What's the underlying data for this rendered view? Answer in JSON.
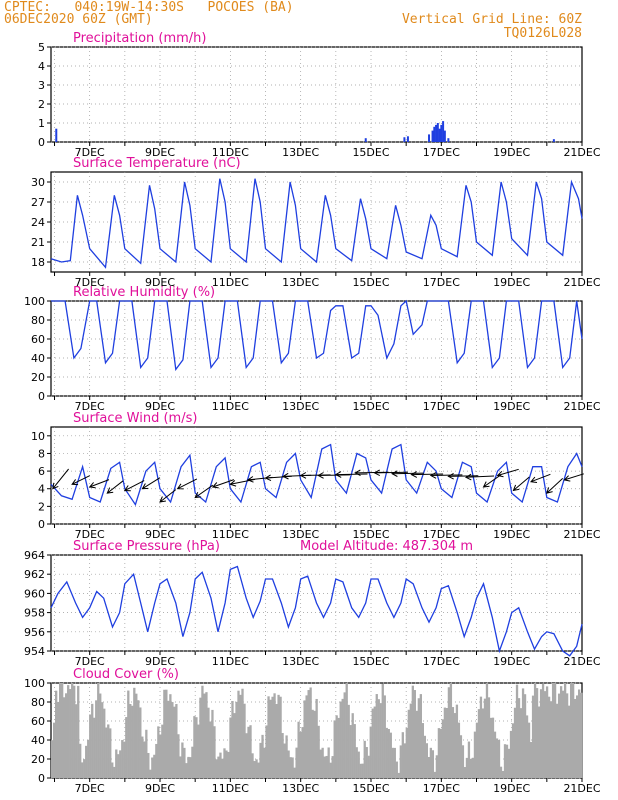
{
  "header": {
    "line1_left": "CPTEC:   040:19W-14:30S   POCOES (BA)",
    "line2_left": "06DEC2020 60Z (GMT)",
    "line1_right": "Vertical Grid Line: 60Z",
    "line2_right": "TQ0126L028"
  },
  "x_ticks": [
    "7DEC",
    "9DEC",
    "11DEC",
    "13DEC",
    "15DEC",
    "17DEC",
    "19DEC",
    "21DEC"
  ],
  "colors": {
    "header": "#e08a1c",
    "title": "#e0109a",
    "series": "#1f3fe0",
    "bars": "#aaaaaa",
    "wind": "#000000"
  },
  "chart_data": [
    {
      "type": "bar",
      "title": "Precipitation (mm/h)",
      "ylim": [
        0,
        5
      ],
      "yticks": [
        0,
        1,
        2,
        3,
        4,
        5
      ],
      "x_day": [
        6.05,
        14.85,
        15.95,
        16.05,
        16.65,
        16.75,
        16.8,
        16.85,
        16.9,
        16.95,
        17.0,
        17.05,
        17.1,
        17.2,
        20.2
      ],
      "values": [
        0.7,
        0.2,
        0.25,
        0.3,
        0.4,
        0.6,
        0.8,
        0.9,
        1.0,
        0.7,
        0.9,
        1.1,
        0.6,
        0.2,
        0.15
      ]
    },
    {
      "type": "line",
      "title": "Surface Temperature (nC)",
      "ylim": [
        16.5,
        31.5
      ],
      "yticks": [
        18,
        21,
        24,
        27,
        30
      ],
      "x_day": [
        5.9,
        6.2,
        6.45,
        6.65,
        6.8,
        7.0,
        7.45,
        7.7,
        7.85,
        8.0,
        8.45,
        8.7,
        8.85,
        9.0,
        9.45,
        9.7,
        9.85,
        10.0,
        10.45,
        10.7,
        10.85,
        11.0,
        11.45,
        11.7,
        11.85,
        12.0,
        12.45,
        12.7,
        12.85,
        13.0,
        13.45,
        13.7,
        13.85,
        14.0,
        14.45,
        14.7,
        14.85,
        15.0,
        15.45,
        15.7,
        15.85,
        16.0,
        16.45,
        16.7,
        16.85,
        17.0,
        17.45,
        17.7,
        17.85,
        18.0,
        18.45,
        18.7,
        18.85,
        19.0,
        19.45,
        19.7,
        19.85,
        20.0,
        20.45,
        20.7,
        20.9,
        21.0
      ],
      "values": [
        18.5,
        18.0,
        18.2,
        28.0,
        25.0,
        20.0,
        17.2,
        28.0,
        25.0,
        20.0,
        17.8,
        29.5,
        26.0,
        20.0,
        18.0,
        30.0,
        26.5,
        20.0,
        18.0,
        30.5,
        27.0,
        20.0,
        18.0,
        30.5,
        27.0,
        20.0,
        18.0,
        30.0,
        26.5,
        20.0,
        18.0,
        28.0,
        25.0,
        20.0,
        18.2,
        27.5,
        24.5,
        20.0,
        18.5,
        26.5,
        23.5,
        19.5,
        18.5,
        25.0,
        23.5,
        20.0,
        18.8,
        29.5,
        27.0,
        21.0,
        19.0,
        30.0,
        27.0,
        21.5,
        19.0,
        30.0,
        27.5,
        21.0,
        19.0,
        30.0,
        27.5,
        24.5
      ]
    },
    {
      "type": "line",
      "title": "Relative Humidity (%)",
      "ylim": [
        0,
        100
      ],
      "yticks": [
        0,
        20,
        40,
        60,
        80,
        100
      ],
      "x_day": [
        5.9,
        6.3,
        6.55,
        6.75,
        7.0,
        7.2,
        7.45,
        7.65,
        7.85,
        8.0,
        8.2,
        8.45,
        8.65,
        8.85,
        9.0,
        9.2,
        9.45,
        9.65,
        9.85,
        10.0,
        10.2,
        10.45,
        10.65,
        10.85,
        11.0,
        11.2,
        11.45,
        11.65,
        11.85,
        12.0,
        12.2,
        12.45,
        12.65,
        12.85,
        13.0,
        13.2,
        13.45,
        13.65,
        13.85,
        14.0,
        14.2,
        14.45,
        14.65,
        14.85,
        15.0,
        15.2,
        15.45,
        15.65,
        15.85,
        16.0,
        16.2,
        16.45,
        16.6,
        16.8,
        17.0,
        17.2,
        17.45,
        17.65,
        17.85,
        18.0,
        18.2,
        18.45,
        18.65,
        18.85,
        19.0,
        19.2,
        19.45,
        19.65,
        19.85,
        20.0,
        20.2,
        20.45,
        20.65,
        20.85,
        21.0
      ],
      "values": [
        100,
        100,
        40,
        50,
        100,
        100,
        35,
        45,
        100,
        100,
        100,
        30,
        40,
        100,
        100,
        100,
        28,
        38,
        100,
        100,
        100,
        30,
        40,
        100,
        100,
        100,
        30,
        40,
        100,
        100,
        100,
        35,
        45,
        100,
        100,
        100,
        40,
        45,
        90,
        95,
        95,
        40,
        45,
        95,
        95,
        85,
        40,
        55,
        95,
        100,
        65,
        75,
        100,
        100,
        100,
        100,
        35,
        45,
        100,
        100,
        100,
        30,
        40,
        100,
        100,
        100,
        30,
        40,
        100,
        100,
        100,
        30,
        40,
        100,
        60
      ]
    },
    {
      "type": "line",
      "title": "Surface Wind (m/s)",
      "ylim": [
        0,
        11
      ],
      "yticks": [
        0,
        2,
        4,
        6,
        8,
        10
      ],
      "x_day": [
        5.9,
        6.2,
        6.5,
        6.8,
        7.0,
        7.3,
        7.6,
        7.85,
        8.0,
        8.3,
        8.6,
        8.85,
        9.0,
        9.3,
        9.6,
        9.85,
        10.0,
        10.3,
        10.6,
        10.85,
        11.0,
        11.3,
        11.6,
        11.85,
        12.0,
        12.3,
        12.6,
        12.85,
        13.0,
        13.3,
        13.6,
        13.85,
        14.0,
        14.3,
        14.6,
        14.85,
        15.0,
        15.3,
        15.6,
        15.85,
        16.0,
        16.3,
        16.6,
        16.85,
        17.0,
        17.3,
        17.6,
        17.85,
        18.0,
        18.3,
        18.6,
        18.85,
        19.0,
        19.3,
        19.6,
        19.85,
        20.0,
        20.3,
        20.6,
        20.85,
        21.0
      ],
      "values": [
        4.5,
        3.2,
        2.8,
        6.5,
        3.0,
        2.5,
        6.3,
        7.0,
        4.0,
        2.2,
        6.0,
        7.0,
        4.0,
        2.5,
        6.5,
        7.8,
        3.5,
        2.5,
        6.5,
        7.5,
        4.0,
        2.5,
        6.5,
        7.0,
        4.0,
        3.0,
        7.0,
        8.0,
        5.0,
        3.0,
        8.5,
        9.0,
        5.0,
        3.5,
        8.0,
        7.5,
        5.0,
        3.5,
        8.5,
        9.0,
        5.0,
        3.5,
        7.0,
        6.0,
        4.0,
        3.0,
        7.0,
        6.5,
        3.5,
        2.5,
        6.0,
        7.0,
        3.5,
        2.5,
        6.5,
        6.5,
        3.0,
        2.5,
        6.5,
        8.0,
        6.5
      ],
      "wind_barbs": [
        {
          "x_day": 5.95,
          "speed": 4,
          "dx": 0.45,
          "dy": 1.6
        },
        {
          "x_day": 6.5,
          "speed": 4.5,
          "dx": 0.5,
          "dy": 0.7
        },
        {
          "x_day": 7.0,
          "speed": 4.2,
          "dx": 0.55,
          "dy": 0.6
        },
        {
          "x_day": 7.5,
          "speed": 3.5,
          "dx": 0.45,
          "dy": 1.0
        },
        {
          "x_day": 8.0,
          "speed": 3.8,
          "dx": 0.55,
          "dy": 0.8
        },
        {
          "x_day": 8.5,
          "speed": 4.0,
          "dx": 0.5,
          "dy": 0.9
        },
        {
          "x_day": 9.0,
          "speed": 2.5,
          "dx": 0.45,
          "dy": 1.0
        },
        {
          "x_day": 9.5,
          "speed": 4.0,
          "dx": 0.55,
          "dy": 0.8
        },
        {
          "x_day": 10.0,
          "speed": 3.0,
          "dx": 0.5,
          "dy": 1.0
        },
        {
          "x_day": 10.5,
          "speed": 4.2,
          "dx": 0.6,
          "dy": 0.6
        },
        {
          "x_day": 11.0,
          "speed": 4.5,
          "dx": 0.7,
          "dy": 0.4
        },
        {
          "x_day": 11.5,
          "speed": 5.0,
          "dx": 0.7,
          "dy": 0.2
        },
        {
          "x_day": 12.0,
          "speed": 5.2,
          "dx": 0.75,
          "dy": 0.15
        },
        {
          "x_day": 12.5,
          "speed": 5.4,
          "dx": 0.8,
          "dy": 0.1
        },
        {
          "x_day": 13.0,
          "speed": 5.5,
          "dx": 0.85,
          "dy": 0.05
        },
        {
          "x_day": 13.5,
          "speed": 5.5,
          "dx": 0.9,
          "dy": 0.05
        },
        {
          "x_day": 14.0,
          "speed": 5.6,
          "dx": 0.9,
          "dy": 0.05
        },
        {
          "x_day": 14.55,
          "speed": 5.8,
          "dx": 0.95,
          "dy": 0.05
        },
        {
          "x_day": 15.1,
          "speed": 5.8,
          "dx": 0.95,
          "dy": 0.05
        },
        {
          "x_day": 15.6,
          "speed": 5.7,
          "dx": 0.9,
          "dy": 0.05
        },
        {
          "x_day": 16.15,
          "speed": 5.6,
          "dx": 0.9,
          "dy": 0.05
        },
        {
          "x_day": 16.7,
          "speed": 5.5,
          "dx": 0.9,
          "dy": 0.05
        },
        {
          "x_day": 17.2,
          "speed": 5.4,
          "dx": 0.85,
          "dy": 0.05
        },
        {
          "x_day": 17.7,
          "speed": 5.3,
          "dx": 0.8,
          "dy": 0.1
        },
        {
          "x_day": 18.2,
          "speed": 4.2,
          "dx": 0.5,
          "dy": 1.0
        },
        {
          "x_day": 18.6,
          "speed": 5.5,
          "dx": 0.6,
          "dy": 0.5
        },
        {
          "x_day": 19.05,
          "speed": 3.8,
          "dx": 0.45,
          "dy": 1.1
        },
        {
          "x_day": 19.55,
          "speed": 4.8,
          "dx": 0.55,
          "dy": 0.6
        },
        {
          "x_day": 20.0,
          "speed": 3.5,
          "dx": 0.45,
          "dy": 1.2
        },
        {
          "x_day": 20.5,
          "speed": 5.0,
          "dx": 0.55,
          "dy": 0.5
        }
      ]
    },
    {
      "type": "line",
      "title": "Surface Pressure (hPa)",
      "annotation": "Model Altitude: 487.304 m",
      "ylim": [
        954,
        964
      ],
      "yticks": [
        954,
        956,
        958,
        960,
        962,
        964
      ],
      "x_day": [
        5.9,
        6.1,
        6.35,
        6.6,
        6.8,
        7.0,
        7.2,
        7.4,
        7.65,
        7.85,
        8.0,
        8.25,
        8.45,
        8.65,
        8.85,
        9.0,
        9.2,
        9.45,
        9.65,
        9.85,
        10.0,
        10.2,
        10.45,
        10.65,
        10.85,
        11.0,
        11.2,
        11.45,
        11.65,
        11.85,
        12.0,
        12.2,
        12.45,
        12.65,
        12.85,
        13.0,
        13.2,
        13.45,
        13.65,
        13.85,
        14.0,
        14.2,
        14.45,
        14.65,
        14.85,
        15.0,
        15.2,
        15.45,
        15.65,
        15.85,
        16.0,
        16.2,
        16.45,
        16.65,
        16.85,
        17.0,
        17.2,
        17.45,
        17.65,
        17.85,
        18.0,
        18.2,
        18.45,
        18.65,
        18.85,
        19.0,
        19.2,
        19.45,
        19.65,
        19.85,
        20.0,
        20.2,
        20.45,
        20.65,
        20.85,
        21.0
      ],
      "values": [
        958.5,
        960,
        961.2,
        959,
        957.5,
        958.5,
        960.2,
        959.5,
        956.5,
        958,
        961,
        962,
        959,
        956,
        959,
        961,
        961.5,
        959,
        955.5,
        958,
        961.5,
        962.2,
        959.5,
        956,
        959,
        962.5,
        962.8,
        959.5,
        957.5,
        959.2,
        961.5,
        961.5,
        959,
        956.5,
        958.5,
        961.5,
        961.8,
        959,
        957.5,
        959,
        961.5,
        961.2,
        958.5,
        957.5,
        959,
        961.5,
        961.5,
        959,
        957.5,
        959,
        961.5,
        961,
        958.5,
        957,
        958.5,
        960.5,
        960.8,
        958,
        955.5,
        957.5,
        959.5,
        961,
        957.5,
        954,
        956,
        958,
        958.5,
        956,
        954.2,
        955.5,
        956,
        955.8,
        954,
        953.5,
        954.5,
        956.8
      ]
    },
    {
      "type": "bar",
      "title": "Cloud Cover (%)",
      "ylim": [
        0,
        100
      ],
      "yticks": [
        0,
        20,
        40,
        60,
        80,
        100
      ]
    }
  ]
}
